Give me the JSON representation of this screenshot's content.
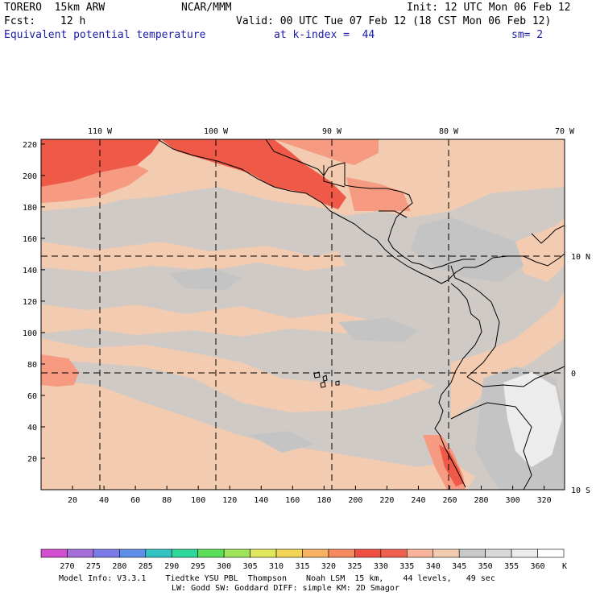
{
  "header": {
    "model": "TORERO  15km ARW",
    "center": "NCAR/MMM",
    "init": "Init: 12 UTC Mon 06 Feb 12",
    "fcst_label": "Fcst:",
    "fcst_value": "12 h",
    "valid": "Valid: 00 UTC Tue 07 Feb 12 (18 CST Mon 06 Feb 12)",
    "field": "Equivalent potential temperature",
    "level": "at k-index =  44",
    "smoothing": "sm= 2"
  },
  "map": {
    "lon_labels": [
      "110 W",
      "100 W",
      "90 W",
      "80 W",
      "70 W"
    ],
    "lat_labels": [
      "10 N",
      "0",
      "10 S"
    ],
    "y_ticks": [
      "220",
      "200",
      "180",
      "160",
      "140",
      "120",
      "100",
      "80",
      "60",
      "40",
      "20"
    ],
    "x_ticks": [
      "20",
      "40",
      "60",
      "80",
      "100",
      "120",
      "140",
      "160",
      "180",
      "200",
      "220",
      "240",
      "260",
      "280",
      "300",
      "320"
    ]
  },
  "colorbar": {
    "labels": [
      "270",
      "275",
      "280",
      "285",
      "290",
      "295",
      "300",
      "305",
      "310",
      "315",
      "320",
      "325",
      "330",
      "335",
      "340",
      "345",
      "350",
      "355",
      "360"
    ],
    "unit": "K",
    "colors": [
      "#d24fd2",
      "#a66ed9",
      "#7b7be8",
      "#5e8ee8",
      "#33c3c3",
      "#2ed79a",
      "#5ade5a",
      "#9fe35a",
      "#dfe85a",
      "#f3d555",
      "#f7b163",
      "#f48a5e",
      "#ef4f42",
      "#f06050",
      "#f7b49a",
      "#f2cbb0",
      "#c9c9c9",
      "#d9d9d9",
      "#ececec",
      "#ffffff"
    ]
  },
  "footer": {
    "line1": "Model Info: V3.3.1    Tiedtke YSU PBL  Thompson    Noah LSM  15 km,    44 levels,   49 sec",
    "line2": "LW: Godd SW: Goddard DIFF: simple KM: 2D Smagor"
  }
}
